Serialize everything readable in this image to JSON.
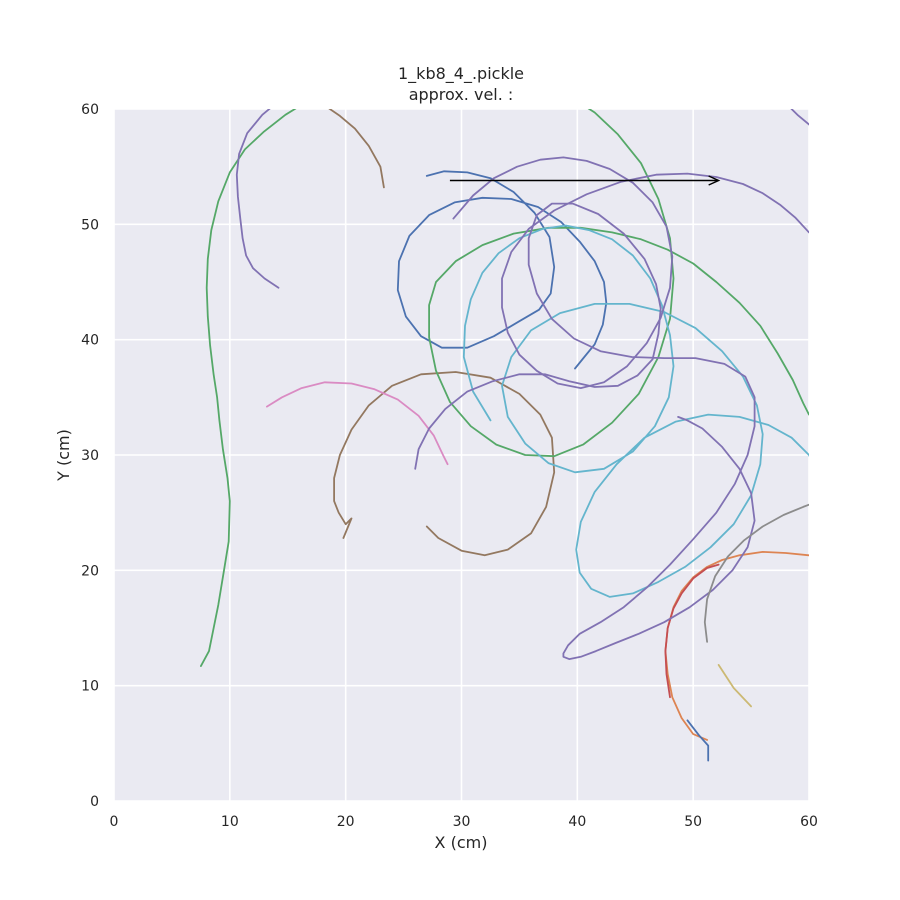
{
  "chart_data": {
    "type": "line",
    "title": "1_kb8_4_.pickle",
    "subtitle": "approx. vel. :",
    "xlabel": "X (cm)",
    "ylabel": "Y (cm)",
    "xlim": [
      0,
      60
    ],
    "ylim": [
      0,
      60
    ],
    "xticks": [
      "0",
      "10",
      "20",
      "30",
      "40",
      "50",
      "60"
    ],
    "yticks": [
      "0",
      "10",
      "20",
      "30",
      "40",
      "50",
      "60"
    ],
    "grid": true,
    "background": "#eaeaf2",
    "arrow": {
      "x": [
        29.0,
        52.2
      ],
      "y": [
        53.8,
        53.8
      ],
      "color": "#000000"
    },
    "series": [
      {
        "color": "#55a868",
        "x": [
          7.5,
          8.2,
          9.0,
          9.5,
          9.9,
          10.0,
          9.8,
          9.4,
          9.1,
          8.9,
          8.6,
          8.3,
          8.1,
          8.0,
          8.1,
          8.4,
          9.0,
          10.0,
          11.3,
          12.9,
          14.8,
          16.9,
          18.5
        ],
        "y": [
          11.7,
          13.0,
          17.0,
          20.0,
          22.5,
          26.0,
          28.0,
          30.5,
          33.0,
          35.0,
          37.0,
          39.5,
          42.0,
          44.5,
          47.0,
          49.5,
          52.0,
          54.5,
          56.5,
          58.0,
          59.5,
          60.8,
          61.5
        ]
      },
      {
        "color": "#8172b3",
        "x": [
          14.2,
          13.0,
          12.0,
          11.4,
          11.1,
          10.9,
          10.7,
          10.6,
          10.8,
          11.5,
          12.8,
          14.6,
          16.8,
          19.0
        ],
        "y": [
          44.5,
          45.3,
          46.2,
          47.3,
          48.8,
          50.5,
          52.4,
          54.3,
          56.1,
          57.9,
          59.5,
          61.0,
          62.0,
          62.5
        ]
      },
      {
        "color": "#937860",
        "x": [
          23.3,
          23.0,
          22.0,
          20.8,
          19.5,
          18.2
        ],
        "y": [
          53.2,
          55.0,
          56.8,
          58.3,
          59.4,
          60.3
        ]
      },
      {
        "color": "#dd8452",
        "x": [
          51.2,
          50.0,
          49.0,
          48.2,
          47.8,
          47.6,
          47.8,
          48.3,
          49.0,
          50.0,
          51.2,
          52.5,
          54.0,
          56.0,
          58.0,
          60.0
        ],
        "y": [
          5.3,
          5.8,
          7.2,
          9.0,
          11.0,
          13.0,
          15.0,
          16.8,
          18.2,
          19.4,
          20.3,
          20.9,
          21.3,
          21.6,
          21.5,
          21.3
        ]
      },
      {
        "color": "#c44e52",
        "x": [
          48.0,
          47.7,
          47.6,
          47.8,
          48.3,
          49.0,
          50.0,
          51.2,
          52.2
        ],
        "y": [
          9.0,
          11.0,
          13.0,
          15.0,
          16.7,
          18.0,
          19.3,
          20.2,
          20.5
        ]
      },
      {
        "color": "#937860",
        "x": [
          27.0,
          28.0,
          30.0,
          32.0,
          34.0,
          36.0,
          37.3,
          38.0,
          37.8,
          36.8,
          35.0,
          32.5,
          29.5,
          26.5,
          24.0,
          22.0,
          20.5,
          19.5,
          19.0,
          19.0,
          19.4,
          20.0,
          20.5,
          19.8
        ],
        "y": [
          23.8,
          22.8,
          21.7,
          21.3,
          21.8,
          23.2,
          25.5,
          28.5,
          31.5,
          33.5,
          35.3,
          36.7,
          37.2,
          37.0,
          36.0,
          34.3,
          32.2,
          30.0,
          28.0,
          26.0,
          25.0,
          24.0,
          24.5,
          22.8
        ]
      },
      {
        "color": "#da8bc3",
        "x": [
          13.2,
          14.5,
          16.2,
          18.2,
          20.5,
          22.5,
          24.5,
          26.3,
          27.6,
          28.4,
          28.8
        ],
        "y": [
          34.2,
          35.0,
          35.8,
          36.3,
          36.2,
          35.7,
          34.8,
          33.4,
          31.7,
          30.0,
          29.2
        ]
      },
      {
        "color": "#4c72b0",
        "x": [
          27.0,
          28.5,
          30.5,
          32.5,
          34.5,
          36.3,
          37.6,
          38.0,
          37.7,
          36.7,
          35.0,
          32.8,
          30.5,
          28.3,
          26.5,
          25.2,
          24.5,
          24.6,
          25.5,
          27.2,
          29.4,
          31.8,
          34.3,
          36.6,
          38.6,
          40.2,
          41.5,
          42.3,
          42.5,
          42.2,
          41.5,
          40.6,
          39.8
        ],
        "y": [
          54.2,
          54.6,
          54.5,
          54.0,
          52.8,
          51.0,
          48.9,
          46.3,
          44.0,
          42.6,
          41.6,
          40.3,
          39.3,
          39.3,
          40.3,
          42.0,
          44.3,
          46.8,
          49.0,
          50.8,
          51.9,
          52.3,
          52.2,
          51.5,
          50.2,
          48.5,
          46.8,
          45.0,
          43.2,
          41.3,
          39.6,
          38.5,
          37.5
        ]
      },
      {
        "color": "#55a868",
        "x": [
          39.5,
          41.5,
          43.5,
          45.5,
          47.0,
          48.0,
          48.3,
          48.0,
          47.0,
          45.3,
          43.0,
          40.5,
          38.0,
          35.5,
          33.0,
          30.8,
          29.0,
          27.8,
          27.2,
          27.2,
          27.8,
          29.5,
          31.8,
          34.5,
          37.5,
          40.3,
          43.0,
          45.5,
          47.8,
          50.0,
          52.0,
          54.0,
          55.8,
          57.3,
          58.6,
          59.5,
          60.0
        ],
        "y": [
          61.0,
          59.7,
          57.8,
          55.3,
          52.2,
          48.8,
          45.3,
          41.8,
          38.5,
          35.3,
          32.8,
          30.9,
          29.9,
          30.0,
          30.9,
          32.5,
          34.6,
          37.3,
          40.2,
          43.0,
          45.0,
          46.8,
          48.2,
          49.2,
          49.7,
          49.7,
          49.3,
          48.7,
          47.8,
          46.6,
          45.0,
          43.2,
          41.2,
          38.8,
          36.5,
          34.5,
          33.5
        ]
      },
      {
        "color": "#8172b3",
        "x": [
          58.0,
          59.0,
          60.2,
          61.0
        ],
        "y": [
          60.5,
          59.5,
          58.5,
          57.8
        ]
      },
      {
        "color": "#64b5cd",
        "x": [
          32.5,
          31.0,
          30.2,
          30.3,
          30.8,
          31.8,
          33.2,
          35.0,
          37.0,
          39.0,
          41.0,
          43.0,
          44.8,
          46.3,
          47.3,
          48.0,
          48.3,
          47.9,
          46.7,
          44.8,
          42.3,
          39.8,
          37.5,
          35.5,
          34.0,
          33.5,
          34.3,
          36.0,
          38.5,
          41.5,
          44.5,
          47.5,
          50.2,
          52.5,
          54.3,
          55.5,
          56.0,
          55.8,
          55.0,
          53.5,
          51.5,
          49.3,
          47.0,
          44.8,
          42.8,
          41.2,
          40.2,
          39.9,
          40.3,
          41.5,
          43.4,
          45.8,
          48.5,
          51.3,
          54.0,
          56.5,
          58.5,
          60.0,
          60.5
        ],
        "y": [
          33.0,
          35.5,
          38.5,
          41.2,
          43.5,
          45.8,
          47.5,
          48.8,
          49.6,
          49.9,
          49.5,
          48.7,
          47.3,
          45.3,
          43.0,
          40.4,
          37.7,
          35.0,
          32.5,
          30.3,
          28.8,
          28.5,
          29.3,
          31.0,
          33.3,
          36.0,
          38.5,
          40.8,
          42.3,
          43.1,
          43.1,
          42.4,
          41.0,
          39.0,
          36.8,
          34.3,
          31.8,
          29.2,
          26.5,
          24.0,
          22.0,
          20.3,
          19.0,
          18.0,
          17.7,
          18.4,
          19.8,
          21.8,
          24.2,
          26.8,
          29.2,
          31.5,
          32.9,
          33.5,
          33.3,
          32.6,
          31.5,
          30.0,
          29.0
        ]
      },
      {
        "color": "#8172b3",
        "x": [
          26.0,
          26.3,
          27.2,
          28.6,
          30.5,
          32.7,
          35.0,
          37.2,
          39.3,
          41.5,
          43.5,
          45.2,
          46.5,
          47.0,
          47.2,
          46.8,
          45.8,
          44.0,
          41.8,
          39.6,
          37.8,
          36.5,
          35.8,
          35.8,
          36.5,
          37.8,
          39.7,
          42.0,
          44.7,
          47.5,
          50.2,
          52.7,
          54.5,
          55.3,
          55.3,
          54.7,
          53.6,
          52.0,
          50.0,
          48.0,
          46.0,
          44.0,
          42.0,
          40.2,
          39.2,
          38.8,
          38.8,
          39.3,
          40.3,
          41.6,
          43.3,
          45.3,
          47.5,
          49.7,
          51.7,
          53.4,
          54.7,
          55.3,
          55.0,
          54.0,
          52.5,
          50.8,
          49.5,
          48.7
        ],
        "y": [
          28.8,
          30.5,
          32.3,
          34.0,
          35.5,
          36.4,
          37.0,
          37.0,
          36.4,
          35.9,
          36.0,
          36.9,
          38.3,
          40.5,
          42.7,
          44.8,
          47.0,
          49.2,
          50.9,
          51.8,
          51.8,
          50.8,
          48.8,
          46.5,
          44.0,
          41.8,
          40.1,
          39.0,
          38.5,
          38.4,
          38.4,
          37.9,
          36.8,
          35.0,
          32.5,
          30.0,
          27.5,
          25.0,
          22.7,
          20.5,
          18.5,
          16.8,
          15.5,
          14.5,
          13.5,
          12.8,
          12.5,
          12.3,
          12.5,
          13.0,
          13.7,
          14.5,
          15.5,
          16.8,
          18.3,
          20.0,
          22.0,
          24.3,
          26.7,
          28.8,
          30.7,
          32.3,
          33.0,
          33.3
        ]
      },
      {
        "color": "#8172b3",
        "x": [
          29.3,
          31.0,
          32.8,
          34.8,
          36.8,
          38.8,
          40.8,
          42.8,
          44.8,
          46.5,
          47.7,
          48.2,
          48.0,
          47.2,
          46.0,
          44.3,
          42.3,
          40.3,
          38.3,
          36.5,
          35.0,
          34.0,
          33.5,
          33.5,
          34.3,
          35.8,
          38.0,
          40.8,
          43.8,
          46.8,
          49.5,
          52.0,
          54.3,
          56.0,
          57.5,
          58.8,
          60.0
        ],
        "y": [
          50.5,
          52.5,
          54.0,
          55.0,
          55.6,
          55.8,
          55.5,
          54.8,
          53.6,
          51.9,
          49.8,
          47.2,
          44.5,
          41.9,
          39.7,
          37.7,
          36.3,
          35.8,
          36.2,
          37.3,
          38.7,
          40.6,
          42.8,
          45.3,
          47.6,
          49.6,
          51.2,
          52.6,
          53.7,
          54.3,
          54.4,
          54.1,
          53.5,
          52.7,
          51.7,
          50.6,
          49.3
        ]
      },
      {
        "color": "#8c8c8c",
        "x": [
          51.2,
          51.0,
          51.2,
          51.9,
          53.0,
          54.4,
          56.0,
          57.8,
          59.5,
          60.3
        ],
        "y": [
          13.8,
          15.5,
          17.5,
          19.5,
          21.2,
          22.6,
          23.8,
          24.8,
          25.5,
          25.8
        ]
      },
      {
        "color": "#ccb974",
        "x": [
          52.2,
          53.5,
          55.0
        ],
        "y": [
          11.8,
          9.8,
          8.2
        ]
      },
      {
        "color": "#4c72b0",
        "x": [
          49.5,
          50.5,
          51.3,
          51.3
        ],
        "y": [
          7.0,
          5.7,
          4.8,
          3.5
        ]
      }
    ]
  }
}
